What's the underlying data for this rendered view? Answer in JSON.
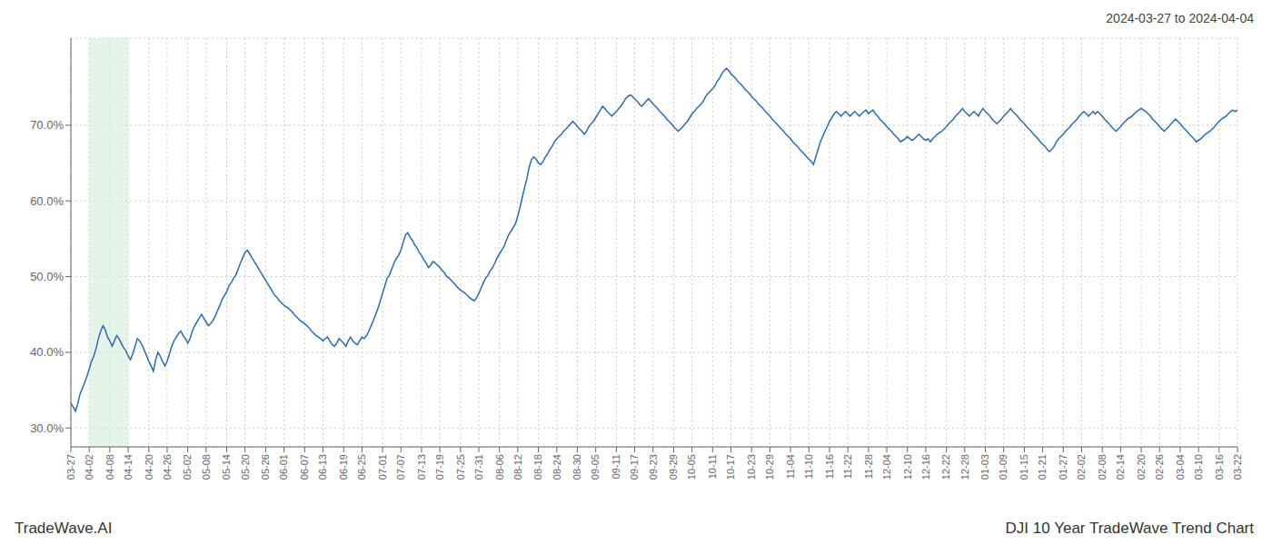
{
  "chart_data": {
    "type": "line",
    "title": "2024-03-27 to 2024-04-04",
    "annotations": [
      "TradeWave.AI",
      "DJI 10 Year TradeWave Trend Chart"
    ],
    "color": "#2b6cb0",
    "grid": true,
    "ylim": [
      0.275,
      0.815
    ],
    "yticks": [
      {
        "value": 0.3,
        "label": "30.0%"
      },
      {
        "value": 0.4,
        "label": "40.0%"
      },
      {
        "value": 0.5,
        "label": "50.0%"
      },
      {
        "value": 0.6,
        "label": "60.0%"
      },
      {
        "value": 0.7,
        "label": "70.0%"
      }
    ],
    "shaded_span": {
      "x": [
        "04-02",
        "04-14"
      ],
      "color": "#d4edda"
    },
    "categories": [
      "03-27",
      null,
      null,
      null,
      null,
      null,
      null,
      null,
      "04-02",
      null,
      null,
      null,
      null,
      null,
      null,
      null,
      null,
      "04-08",
      null,
      null,
      null,
      null,
      null,
      null,
      null,
      "04-14",
      null,
      null,
      null,
      null,
      null,
      null,
      null,
      null,
      "04-20",
      null,
      null,
      null,
      null,
      null,
      null,
      null,
      "04-26",
      null,
      null,
      null,
      null,
      null,
      null,
      null,
      null,
      "05-02",
      null,
      null,
      null,
      null,
      null,
      null,
      null,
      "05-08",
      null,
      null,
      null,
      null,
      null,
      null,
      null,
      null,
      "05-14",
      null,
      null,
      null,
      null,
      null,
      null,
      null,
      "05-20",
      null,
      null,
      null,
      null,
      null,
      null,
      null,
      null,
      "05-26",
      null,
      null,
      null,
      null,
      null,
      null,
      null,
      "06-01",
      null,
      null,
      null,
      null,
      null,
      null,
      null,
      null,
      "06-07",
      null,
      null,
      null,
      null,
      null,
      null,
      null,
      "06-13",
      null,
      null,
      null,
      null,
      null,
      null,
      null,
      null,
      "06-19",
      null,
      null,
      null,
      null,
      null,
      null,
      null,
      "06-25",
      null,
      null,
      null,
      null,
      null,
      null,
      null,
      null,
      "07-01",
      null,
      null,
      null,
      null,
      null,
      null,
      null,
      "07-07",
      null,
      null,
      null,
      null,
      null,
      null,
      null,
      null,
      "07-13",
      null,
      null,
      null,
      null,
      null,
      null,
      null,
      "07-19",
      null,
      null,
      null,
      null,
      null,
      null,
      null,
      null,
      "07-25",
      null,
      null,
      null,
      null,
      null,
      null,
      null,
      "07-31",
      null,
      null,
      null,
      null,
      null,
      null,
      null,
      null,
      "08-06",
      null,
      null,
      null,
      null,
      null,
      null,
      null,
      "08-12",
      null,
      null,
      null,
      null,
      null,
      null,
      null,
      null,
      "08-18",
      null,
      null,
      null,
      null,
      null,
      null,
      null,
      "08-24",
      null,
      null,
      null,
      null,
      null,
      null,
      null,
      null,
      "08-30",
      null,
      null,
      null,
      null,
      null,
      null,
      null,
      "09-05",
      null,
      null,
      null,
      null,
      null,
      null,
      null,
      null,
      "09-11",
      null,
      null,
      null,
      null,
      null,
      null,
      null,
      "09-17",
      null,
      null,
      null,
      null,
      null,
      null,
      null,
      "09-23",
      null,
      null,
      null,
      null,
      null,
      null,
      null,
      null,
      "09-29",
      null,
      null,
      null,
      null,
      null,
      null,
      null,
      "10-05",
      null,
      null,
      null,
      null,
      null,
      null,
      null,
      null,
      "10-11",
      null,
      null,
      null,
      null,
      null,
      null,
      null,
      "10-17",
      null,
      null,
      null,
      null,
      null,
      null,
      null,
      null,
      "10-23",
      null,
      null,
      null,
      null,
      null,
      null,
      null,
      "10-29",
      null,
      null,
      null,
      null,
      null,
      null,
      null,
      null,
      "11-04",
      null,
      null,
      null,
      null,
      null,
      null,
      null,
      "11-10",
      null,
      null,
      null,
      null,
      null,
      null,
      null,
      null,
      "11-16",
      null,
      null,
      null,
      null,
      null,
      null,
      null,
      "11-22",
      null,
      null,
      null,
      null,
      null,
      null,
      null,
      null,
      "11-28",
      null,
      null,
      null,
      null,
      null,
      null,
      null,
      "12-04",
      null,
      null,
      null,
      null,
      null,
      null,
      null,
      null,
      "12-10",
      null,
      null,
      null,
      null,
      null,
      null,
      null,
      "12-16",
      null,
      null,
      null,
      null,
      null,
      null,
      null,
      null,
      "12-22",
      null,
      null,
      null,
      null,
      null,
      null,
      null,
      "12-28",
      null,
      null,
      null,
      null,
      null,
      null,
      null,
      null,
      "01-03",
      null,
      null,
      null,
      null,
      null,
      null,
      null,
      "01-09",
      null,
      null,
      null,
      null,
      null,
      null,
      null,
      null,
      "01-15",
      null,
      null,
      null,
      null,
      null,
      null,
      null,
      "01-21",
      null,
      null,
      null,
      null,
      null,
      null,
      null,
      null,
      "01-27",
      null,
      null,
      null,
      null,
      null,
      null,
      null,
      "02-02",
      null,
      null,
      null,
      null,
      null,
      null,
      null,
      null,
      "02-08",
      null,
      null,
      null,
      null,
      null,
      null,
      null,
      "02-14",
      null,
      null,
      null,
      null,
      null,
      null,
      null,
      null,
      "02-20",
      null,
      null,
      null,
      null,
      null,
      null,
      null,
      "02-26",
      null,
      null,
      null,
      null,
      null,
      null,
      null,
      null,
      "03-04",
      null,
      null,
      null,
      null,
      null,
      null,
      null,
      "03-10",
      null,
      null,
      null,
      null,
      null,
      null,
      null,
      null,
      "03-16",
      null,
      null,
      null,
      null,
      null,
      null,
      null,
      "03-22"
    ],
    "values": [
      0.333,
      0.328,
      0.322,
      0.332,
      0.345,
      0.352,
      0.36,
      0.368,
      0.378,
      0.388,
      0.395,
      0.405,
      0.418,
      0.428,
      0.435,
      0.43,
      0.42,
      0.415,
      0.408,
      0.415,
      0.422,
      0.418,
      0.412,
      0.406,
      0.402,
      0.395,
      0.39,
      0.398,
      0.408,
      0.418,
      0.415,
      0.41,
      0.403,
      0.396,
      0.388,
      0.382,
      0.375,
      0.39,
      0.4,
      0.395,
      0.388,
      0.382,
      0.388,
      0.398,
      0.408,
      0.415,
      0.42,
      0.425,
      0.428,
      0.422,
      0.418,
      0.412,
      0.418,
      0.428,
      0.435,
      0.44,
      0.445,
      0.45,
      0.445,
      0.44,
      0.435,
      0.438,
      0.442,
      0.448,
      0.455,
      0.462,
      0.47,
      0.475,
      0.48,
      0.488,
      0.492,
      0.498,
      0.502,
      0.51,
      0.518,
      0.525,
      0.532,
      0.535,
      0.53,
      0.525,
      0.52,
      0.515,
      0.51,
      0.505,
      0.5,
      0.495,
      0.49,
      0.485,
      0.48,
      0.475,
      0.472,
      0.468,
      0.465,
      0.462,
      0.46,
      0.458,
      0.455,
      0.452,
      0.448,
      0.445,
      0.442,
      0.44,
      0.438,
      0.435,
      0.432,
      0.428,
      0.425,
      0.422,
      0.42,
      0.418,
      0.415,
      0.418,
      0.42,
      0.415,
      0.41,
      0.408,
      0.412,
      0.418,
      0.415,
      0.412,
      0.408,
      0.415,
      0.42,
      0.415,
      0.412,
      0.41,
      0.415,
      0.42,
      0.418,
      0.422,
      0.428,
      0.435,
      0.442,
      0.45,
      0.458,
      0.468,
      0.478,
      0.488,
      0.498,
      0.502,
      0.51,
      0.518,
      0.524,
      0.528,
      0.535,
      0.545,
      0.555,
      0.558,
      0.552,
      0.548,
      0.542,
      0.538,
      0.532,
      0.528,
      0.522,
      0.518,
      0.512,
      0.515,
      0.52,
      0.518,
      0.515,
      0.512,
      0.508,
      0.505,
      0.5,
      0.498,
      0.495,
      0.492,
      0.488,
      0.485,
      0.482,
      0.48,
      0.478,
      0.475,
      0.472,
      0.47,
      0.468,
      0.472,
      0.478,
      0.485,
      0.492,
      0.498,
      0.502,
      0.508,
      0.512,
      0.518,
      0.525,
      0.53,
      0.535,
      0.54,
      0.548,
      0.555,
      0.56,
      0.565,
      0.57,
      0.58,
      0.592,
      0.605,
      0.618,
      0.63,
      0.645,
      0.655,
      0.658,
      0.655,
      0.65,
      0.648,
      0.652,
      0.658,
      0.662,
      0.668,
      0.672,
      0.678,
      0.682,
      0.685,
      0.688,
      0.692,
      0.695,
      0.698,
      0.702,
      0.705,
      0.702,
      0.698,
      0.695,
      0.692,
      0.688,
      0.692,
      0.698,
      0.702,
      0.705,
      0.71,
      0.715,
      0.72,
      0.725,
      0.722,
      0.718,
      0.715,
      0.712,
      0.715,
      0.718,
      0.722,
      0.725,
      0.73,
      0.735,
      0.738,
      0.74,
      0.738,
      0.735,
      0.732,
      0.728,
      0.725,
      0.728,
      0.732,
      0.735,
      0.732,
      0.728,
      0.725,
      0.722,
      0.718,
      0.715,
      0.712,
      0.708,
      0.705,
      0.702,
      0.698,
      0.695,
      0.692,
      0.695,
      0.698,
      0.702,
      0.705,
      0.71,
      0.715,
      0.718,
      0.722,
      0.725,
      0.728,
      0.732,
      0.738,
      0.742,
      0.745,
      0.748,
      0.752,
      0.758,
      0.762,
      0.768,
      0.772,
      0.775,
      0.772,
      0.768,
      0.765,
      0.762,
      0.758,
      0.755,
      0.752,
      0.748,
      0.745,
      0.742,
      0.738,
      0.735,
      0.732,
      0.728,
      0.725,
      0.722,
      0.718,
      0.715,
      0.712,
      0.708,
      0.705,
      0.702,
      0.698,
      0.695,
      0.692,
      0.688,
      0.685,
      0.682,
      0.678,
      0.675,
      0.672,
      0.668,
      0.665,
      0.662,
      0.658,
      0.655,
      0.652,
      0.648,
      0.658,
      0.668,
      0.678,
      0.685,
      0.692,
      0.698,
      0.705,
      0.71,
      0.715,
      0.718,
      0.715,
      0.712,
      0.715,
      0.718,
      0.715,
      0.712,
      0.715,
      0.718,
      0.715,
      0.712,
      0.715,
      0.718,
      0.72,
      0.715,
      0.718,
      0.72,
      0.715,
      0.712,
      0.708,
      0.705,
      0.702,
      0.698,
      0.695,
      0.692,
      0.688,
      0.685,
      0.682,
      0.678,
      0.68,
      0.682,
      0.685,
      0.682,
      0.68,
      0.682,
      0.685,
      0.688,
      0.685,
      0.682,
      0.68,
      0.682,
      0.678,
      0.682,
      0.685,
      0.688,
      0.69,
      0.692,
      0.695,
      0.698,
      0.702,
      0.705,
      0.708,
      0.712,
      0.715,
      0.718,
      0.722,
      0.718,
      0.715,
      0.712,
      0.715,
      0.718,
      0.715,
      0.712,
      0.718,
      0.722,
      0.718,
      0.715,
      0.712,
      0.708,
      0.705,
      0.702,
      0.705,
      0.708,
      0.712,
      0.715,
      0.718,
      0.722,
      0.718,
      0.715,
      0.712,
      0.708,
      0.705,
      0.702,
      0.698,
      0.695,
      0.692,
      0.688,
      0.685,
      0.682,
      0.678,
      0.675,
      0.672,
      0.668,
      0.665,
      0.668,
      0.672,
      0.678,
      0.682,
      0.685,
      0.688,
      0.692,
      0.695,
      0.698,
      0.702,
      0.705,
      0.708,
      0.712,
      0.715,
      0.718,
      0.715,
      0.712,
      0.715,
      0.718,
      0.715,
      0.718,
      0.715,
      0.712,
      0.708,
      0.705,
      0.702,
      0.698,
      0.695,
      0.692,
      0.695,
      0.698,
      0.702,
      0.705,
      0.708,
      0.71,
      0.712,
      0.715,
      0.718,
      0.72,
      0.722,
      0.72,
      0.718,
      0.715,
      0.712,
      0.708,
      0.705,
      0.702,
      0.698,
      0.695,
      0.692,
      0.695,
      0.698,
      0.702,
      0.705,
      0.708,
      0.705,
      0.702,
      0.698,
      0.695,
      0.692,
      0.688,
      0.685,
      0.682,
      0.678,
      0.68,
      0.682,
      0.685,
      0.688,
      0.69,
      0.692,
      0.695,
      0.698,
      0.702,
      0.705,
      0.708,
      0.71,
      0.712,
      0.715,
      0.718,
      0.72,
      0.718,
      0.72
    ]
  }
}
